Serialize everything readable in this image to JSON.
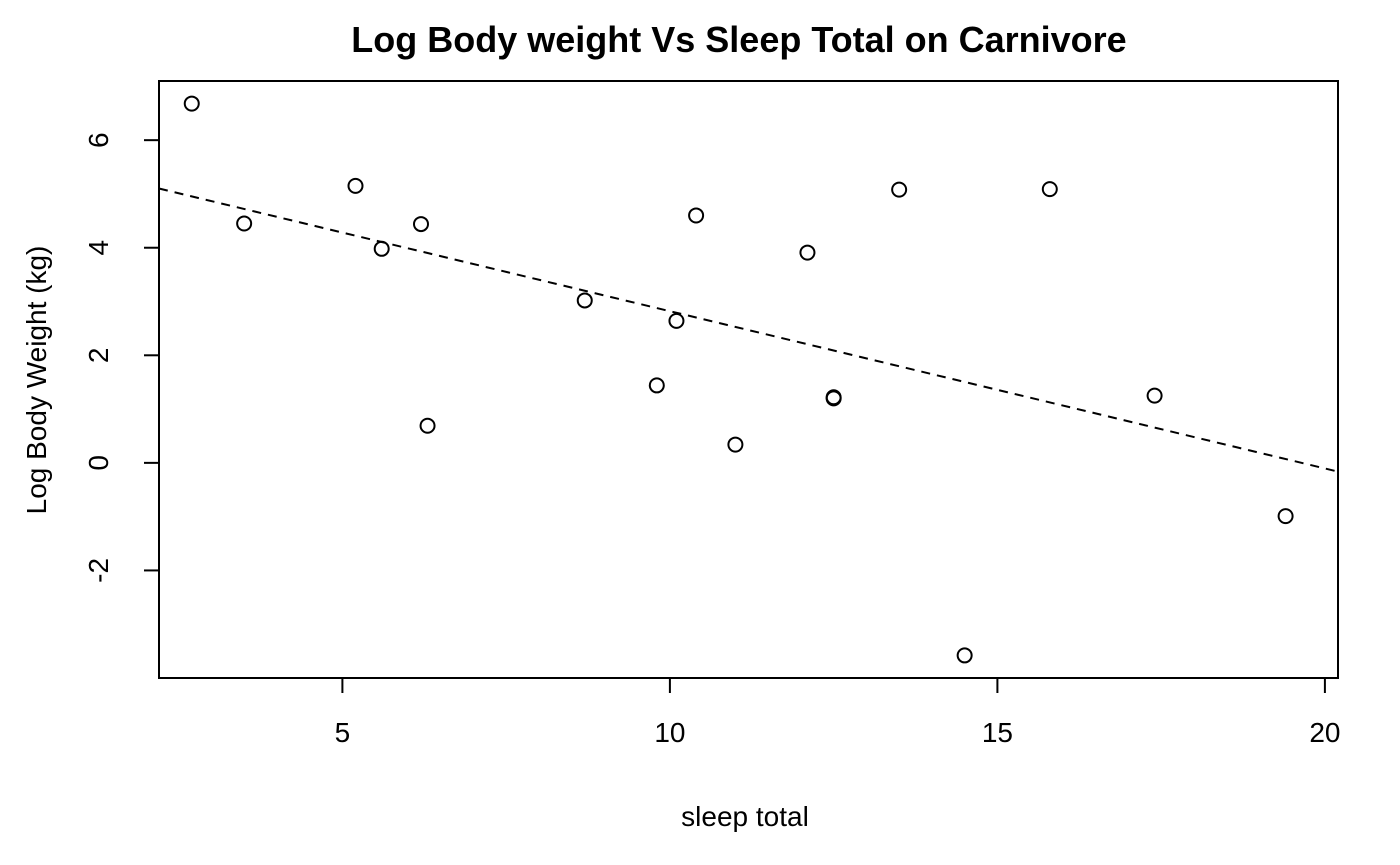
{
  "chart_data": {
    "type": "scatter",
    "title": "Log Body weight Vs Sleep Total on Carnivore",
    "xlabel": "sleep total",
    "ylabel": "Log Body Weight (kg)",
    "xlim": [
      2.2,
      20.2
    ],
    "ylim": [
      -4.0,
      7.1
    ],
    "xticks": [
      5,
      10,
      15,
      20
    ],
    "yticks": [
      -2,
      0,
      2,
      4,
      6
    ],
    "points": [
      {
        "x": 2.7,
        "y": 6.68
      },
      {
        "x": 3.5,
        "y": 4.45
      },
      {
        "x": 5.2,
        "y": 5.15
      },
      {
        "x": 5.6,
        "y": 3.98
      },
      {
        "x": 6.2,
        "y": 4.44
      },
      {
        "x": 6.3,
        "y": 0.69
      },
      {
        "x": 8.7,
        "y": 3.02
      },
      {
        "x": 9.8,
        "y": 1.44
      },
      {
        "x": 10.1,
        "y": 2.64
      },
      {
        "x": 10.4,
        "y": 4.6
      },
      {
        "x": 11.0,
        "y": 0.34
      },
      {
        "x": 12.1,
        "y": 3.91
      },
      {
        "x": 12.5,
        "y": 1.2
      },
      {
        "x": 12.5,
        "y": 1.22
      },
      {
        "x": 13.5,
        "y": 5.08
      },
      {
        "x": 14.5,
        "y": -3.58
      },
      {
        "x": 15.8,
        "y": 5.09
      },
      {
        "x": 17.4,
        "y": 1.25
      },
      {
        "x": 19.4,
        "y": -0.99
      }
    ],
    "fit_line": {
      "style": "dashed",
      "intercept": 5.744,
      "slope": -0.2924
    },
    "grid": false,
    "legend": "none"
  }
}
